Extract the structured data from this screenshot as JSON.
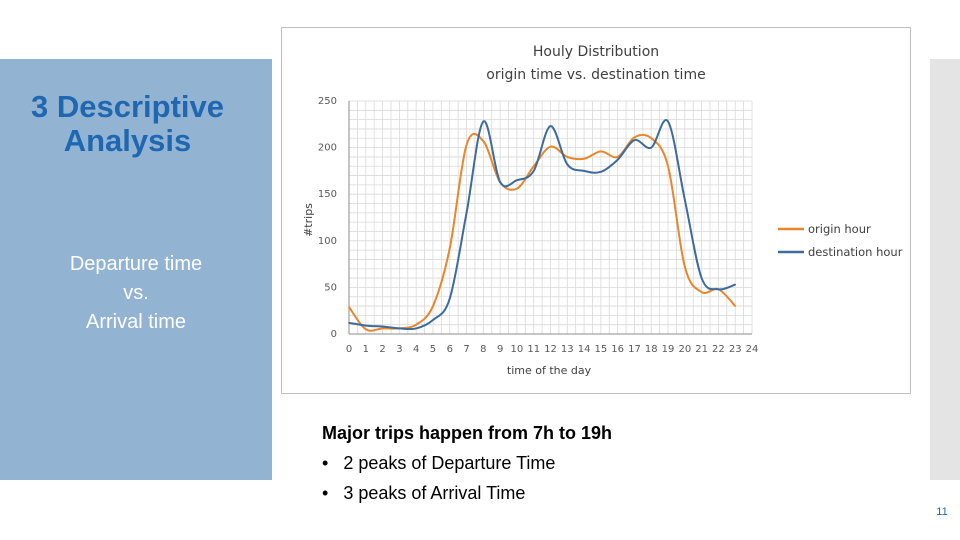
{
  "slide": {
    "section_title_line1": "3 Descriptive",
    "section_title_line2": "Analysis",
    "subtitle_line1": "Departure time",
    "subtitle_line2": "vs.",
    "subtitle_line3": "Arrival time",
    "notes_heading": "Major trips happen from 7h to 19h",
    "bullets": [
      "2 peaks of Departure Time",
      "3 peaks of Arrival Time"
    ],
    "bullet_char": "•",
    "page_number": "11"
  },
  "colors": {
    "panel": "#93b3d3",
    "title": "#1f67b1",
    "origin": "#e8862b",
    "destination": "#3d6b9c",
    "grid": "#d9d9d9"
  },
  "chart_data": {
    "type": "line",
    "title_line1": "Houly Distribution",
    "title_line2": "origin time vs. destination time",
    "xlabel": "time of the day",
    "ylabel": "#trips",
    "x": [
      0,
      1,
      2,
      3,
      4,
      5,
      6,
      7,
      8,
      9,
      10,
      11,
      12,
      13,
      14,
      15,
      16,
      17,
      18,
      19,
      20,
      21,
      22,
      23
    ],
    "x_ticks": [
      "0",
      "1",
      "2",
      "3",
      "4",
      "5",
      "6",
      "7",
      "8",
      "9",
      "10",
      "11",
      "12",
      "13",
      "14",
      "15",
      "16",
      "17",
      "18",
      "19",
      "20",
      "21",
      "22",
      "23",
      "24"
    ],
    "xlim": [
      0,
      24
    ],
    "ylim": [
      0,
      250
    ],
    "y_ticks": [
      0,
      50,
      100,
      150,
      200,
      250
    ],
    "grid": true,
    "legend_position": "right",
    "series": [
      {
        "name": "origin hour",
        "color": "#e8862b",
        "values": [
          29,
          5,
          6,
          6,
          10,
          30,
          92,
          203,
          207,
          163,
          156,
          180,
          201,
          190,
          188,
          196,
          190,
          211,
          210,
          180,
          72,
          45,
          48,
          30
        ]
      },
      {
        "name": "destination hour",
        "color": "#3d6b9c",
        "values": [
          12,
          9,
          8,
          6,
          6,
          15,
          38,
          130,
          228,
          163,
          165,
          175,
          223,
          182,
          175,
          174,
          187,
          208,
          200,
          228,
          144,
          60,
          48,
          53
        ]
      }
    ]
  }
}
